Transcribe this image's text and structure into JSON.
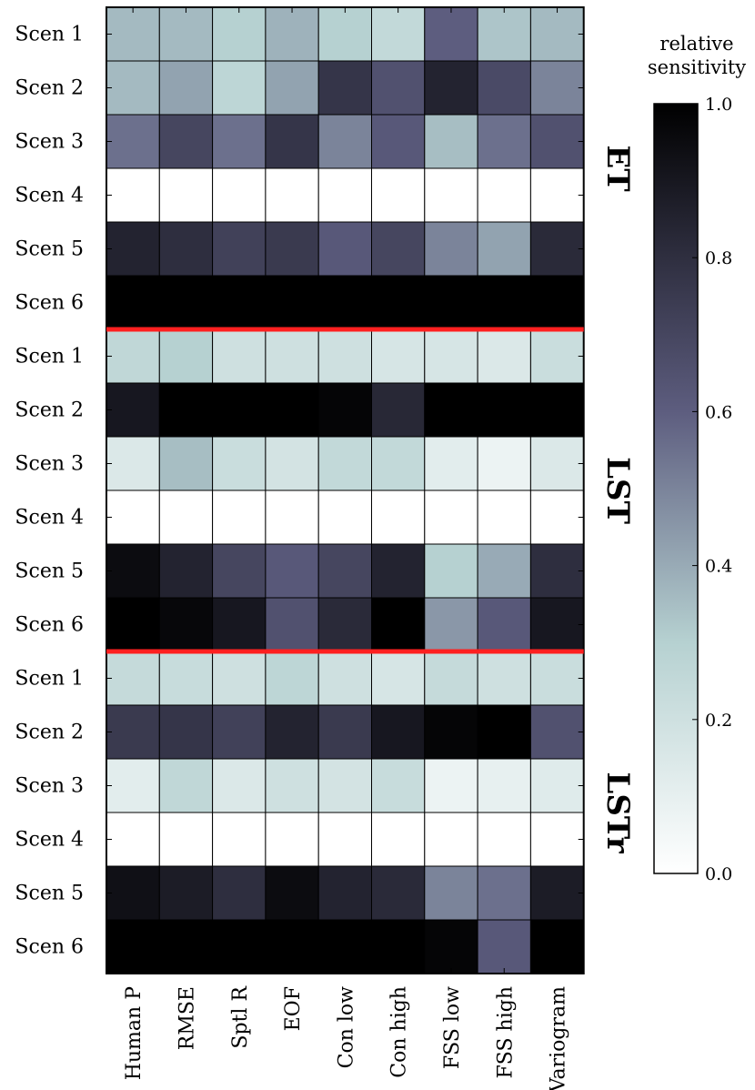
{
  "chart_data": {
    "type": "heatmap",
    "columns": [
      "Human P",
      "RMSE",
      "Sptl R",
      "EOF",
      "Con low",
      "Con high",
      "FSS low",
      "FSS high",
      "Variogram"
    ],
    "groups": [
      {
        "name": "ET",
        "rows": [
          "Scen 1",
          "Scen 2",
          "Scen 3",
          "Scen 4",
          "Scen 5",
          "Scen 6"
        ],
        "values": [
          [
            0.36,
            0.36,
            0.3,
            0.38,
            0.3,
            0.25,
            0.6,
            0.33,
            0.36
          ],
          [
            0.36,
            0.42,
            0.27,
            0.42,
            0.77,
            0.65,
            0.85,
            0.68,
            0.5
          ],
          [
            0.55,
            0.7,
            0.55,
            0.77,
            0.5,
            0.62,
            0.35,
            0.55,
            0.65
          ],
          [
            0.0,
            0.0,
            0.0,
            0.0,
            0.0,
            0.0,
            0.0,
            0.0,
            0.0
          ],
          [
            0.85,
            0.8,
            0.72,
            0.75,
            0.62,
            0.7,
            0.5,
            0.42,
            0.82
          ],
          [
            1.0,
            1.0,
            1.0,
            1.0,
            1.0,
            1.0,
            1.0,
            1.0,
            1.0
          ]
        ]
      },
      {
        "name": "LST",
        "rows": [
          "Scen 1",
          "Scen 2",
          "Scen 3",
          "Scen 4",
          "Scen 5",
          "Scen 6"
        ],
        "values": [
          [
            0.26,
            0.3,
            0.2,
            0.2,
            0.2,
            0.17,
            0.17,
            0.15,
            0.22
          ],
          [
            0.9,
            1.0,
            1.0,
            1.0,
            0.98,
            0.83,
            1.0,
            1.0,
            1.0
          ],
          [
            0.15,
            0.35,
            0.22,
            0.18,
            0.25,
            0.25,
            0.12,
            0.08,
            0.15
          ],
          [
            0.0,
            0.0,
            0.0,
            0.0,
            0.0,
            0.0,
            0.0,
            0.0,
            0.0
          ],
          [
            0.95,
            0.85,
            0.7,
            0.62,
            0.7,
            0.85,
            0.3,
            0.4,
            0.8
          ],
          [
            1.0,
            0.97,
            0.9,
            0.65,
            0.82,
            1.0,
            0.45,
            0.62,
            0.9
          ]
        ]
      },
      {
        "name": "LSTr",
        "rows": [
          "Scen 1",
          "Scen 2",
          "Scen 3",
          "Scen 4",
          "Scen 5",
          "Scen 6"
        ],
        "values": [
          [
            0.24,
            0.23,
            0.2,
            0.27,
            0.2,
            0.17,
            0.24,
            0.2,
            0.22
          ],
          [
            0.75,
            0.77,
            0.72,
            0.85,
            0.75,
            0.9,
            0.98,
            1.0,
            0.65
          ],
          [
            0.12,
            0.26,
            0.15,
            0.2,
            0.18,
            0.23,
            0.08,
            0.1,
            0.13
          ],
          [
            0.0,
            0.0,
            0.0,
            0.0,
            0.0,
            0.0,
            0.0,
            0.0,
            0.0
          ],
          [
            0.93,
            0.88,
            0.8,
            0.95,
            0.85,
            0.82,
            0.5,
            0.55,
            0.88
          ],
          [
            1.0,
            1.0,
            1.0,
            1.0,
            1.0,
            1.0,
            0.98,
            0.62,
            1.0
          ]
        ]
      }
    ],
    "colorbar": {
      "title_lines": [
        "relative",
        "sensitivity"
      ],
      "range": [
        0.0,
        1.0
      ],
      "ticks": [
        "0.0",
        "0.2",
        "0.4",
        "0.6",
        "0.8",
        "1.0"
      ],
      "colormap": "bone_r"
    },
    "separator_color": "#ff2020"
  }
}
